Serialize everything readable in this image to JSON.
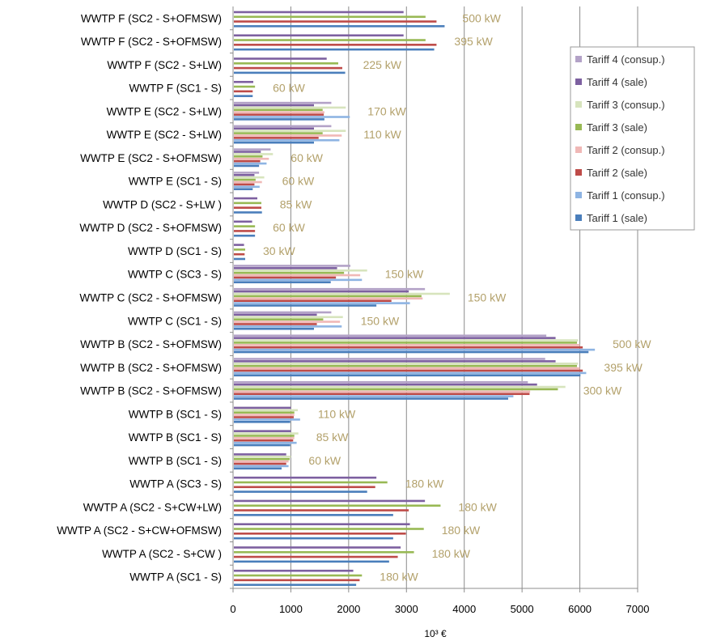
{
  "chart_data": {
    "type": "bar",
    "orientation": "horizontal",
    "xlabel": "10³ €",
    "xlim": [
      0,
      7000
    ],
    "xticks": [
      0,
      1000,
      2000,
      3000,
      4000,
      5000,
      6000,
      7000
    ],
    "grid": true,
    "legend_position": "right",
    "colors": {
      "Tariff 1 (sale)": "#4a7ebb",
      "Tariff 1 (consup.)": "#8eb4e3",
      "Tariff 2 (sale)": "#be4b48",
      "Tariff 2 (consup.)": "#f0b8b6",
      "Tariff 3 (sale)": "#98b954",
      "Tariff 3 (consup.)": "#d7e4bd",
      "Tariff 4 (sale)": "#7d60a0",
      "Tariff 4 (consup.)": "#b3a2c7"
    },
    "legend_order": [
      "Tariff 4 (consup.)",
      "Tariff 4 (sale)",
      "Tariff 3 (consup.)",
      "Tariff 3 (sale)",
      "Tariff 2 (consup.)",
      "Tariff 2 (sale)",
      "Tariff 1 (consup.)",
      "Tariff 1 (sale)"
    ],
    "categories": [
      "WWTP F (SC2 - S+OFMSW)",
      "WWTP F (SC2 - S+OFMSW)",
      "WWTP F (SC2 - S+LW)",
      "WWTP F (SC1 - S)",
      "WWTP E (SC2 - S+LW)",
      "WWTP E (SC2 - S+LW)",
      "WWTP E (SC2 - S+OFMSW)",
      "WWTP E (SC1 - S)",
      "WWTP D (SC2 - S+LW )",
      "WWTP D (SC2 - S+OFMSW)",
      "WWTP D (SC1 - S)",
      "WWTP C (SC3 - S)",
      "WWTP C (SC2 - S+OFMSW)",
      "WWTP C (SC1 - S)",
      "WWTP B (SC2 - S+OFMSW)",
      "WWTP B (SC2 - S+OFMSW)",
      "WWTP B (SC2 - S+OFMSW)",
      "WWTP B (SC1 - S)",
      "WWTP B (SC1 - S)",
      "WWTP B (SC1 - S)",
      "WWTP A (SC3 - S)",
      "WWTP A (SC2 - S+CW+LW)",
      "WWTP A (SC2 - S+CW+OFMSW)",
      "WWTP A (SC2 - S+CW )",
      "WWTP A (SC1 - S)"
    ],
    "power_labels": [
      "500 kW",
      "395 kW",
      "225 kW",
      "60 kW",
      "170 kW",
      "110 kW",
      "60 kW",
      "60 kW",
      "85 kW",
      "60 kW",
      "30 kW",
      "150 kW",
      "150 kW",
      "150 kW",
      "500 kW",
      "395 kW",
      "300 kW",
      "110 kW",
      "85 kW",
      "60 kW",
      "180 kW",
      "180 kW",
      "180 kW",
      "180 kW",
      "180 kW"
    ],
    "series": [
      {
        "name": "Tariff 4 (consup.)",
        "values": [
          null,
          null,
          null,
          null,
          1700,
          1700,
          650,
          450,
          null,
          null,
          null,
          2030,
          3320,
          1700,
          5420,
          5400,
          5100,
          null,
          null,
          null,
          null,
          null,
          null,
          null,
          null
        ]
      },
      {
        "name": "Tariff 4 (sale)",
        "values": [
          2950,
          2950,
          1620,
          350,
          1400,
          1400,
          480,
          370,
          420,
          330,
          190,
          1800,
          3040,
          1450,
          5580,
          5580,
          5260,
          1000,
          1000,
          920,
          2480,
          3320,
          3060,
          2900,
          2080
        ]
      },
      {
        "name": "Tariff 3 (consup.)",
        "values": [
          null,
          null,
          null,
          null,
          1950,
          1950,
          690,
          540,
          null,
          null,
          null,
          2320,
          3750,
          1900,
          5970,
          5970,
          5750,
          1120,
          1130,
          1000,
          null,
          null,
          null,
          null,
          null
        ]
      },
      {
        "name": "Tariff 3 (sale)",
        "values": [
          3330,
          3330,
          1820,
          380,
          1550,
          1550,
          510,
          390,
          490,
          380,
          210,
          1920,
          3260,
          1560,
          5950,
          5950,
          5620,
          1060,
          1060,
          980,
          2670,
          3590,
          3300,
          3130,
          2230
        ]
      },
      {
        "name": "Tariff 2 (consup.)",
        "values": [
          null,
          null,
          null,
          null,
          1580,
          1880,
          620,
          500,
          null,
          null,
          null,
          2200,
          3280,
          1850,
          6000,
          6000,
          5140,
          1060,
          1060,
          960,
          null,
          null,
          null,
          null,
          null
        ]
      },
      {
        "name": "Tariff 2 (sale)",
        "values": [
          3520,
          3520,
          1890,
          340,
          1570,
          1480,
          470,
          370,
          490,
          380,
          200,
          1780,
          2740,
          1450,
          6050,
          6050,
          5130,
          1050,
          1040,
          920,
          2460,
          3040,
          2990,
          2850,
          2190
        ]
      },
      {
        "name": "Tariff 1 (consup.)",
        "values": [
          null,
          null,
          null,
          null,
          2020,
          1840,
          580,
          460,
          null,
          null,
          null,
          2230,
          3060,
          1880,
          6260,
          6110,
          4850,
          1160,
          1100,
          960,
          null,
          null,
          null,
          null,
          null
        ]
      },
      {
        "name": "Tariff 1 (sale)",
        "values": [
          3660,
          3480,
          1940,
          340,
          1580,
          1400,
          450,
          340,
          500,
          380,
          210,
          1690,
          2480,
          1400,
          6150,
          6010,
          4760,
          990,
          990,
          840,
          2320,
          2770,
          2770,
          2700,
          2130
        ]
      }
    ]
  }
}
